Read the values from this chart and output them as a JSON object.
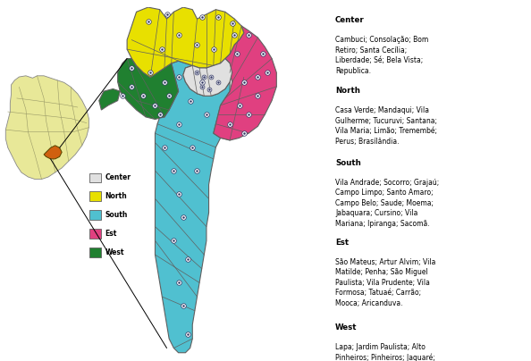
{
  "background_color": "#ffffff",
  "colors": {
    "center": "#e0e0e0",
    "north": "#e8e000",
    "south": "#50c0d0",
    "east": "#e04080",
    "west": "#208030",
    "border": "#606060",
    "brazil_fill": "#e8e898",
    "brazil_highlight": "#d06010",
    "dot_color": "#2a3060"
  },
  "region_texts": {
    "Center": {
      "bold": "Center",
      "text": "Cambuci; Consolação; Bom\nRetiro; Santa Cecília;\nLiberdade; Sé; Bela Vista;\nRepublica."
    },
    "North": {
      "bold": "North",
      "text": "Casa Verde; Mandaqui; Vila\nGulherme; Tucuruvi; Santana;\nVila Maria; Limão; Tremembé;\nPerus; Brasílândia."
    },
    "South": {
      "bold": "South",
      "text": "Vila Andrade; Socorro; Grajaú;\nCampo Limpo; Santo Amaro;\nCampo Belo; Saude; Moema;\nJabaquara; Cursino; Vila\nMariana; Ipiranga; Sacomã."
    },
    "Est": {
      "bold": "Est",
      "text": "São Mateus; Artur Alvim; Vila\nMatilde; Penha; São Miguel\nPaulista; Vila Prudente; Vila\nFormosa; Tatuaé; Carrão;\nMooca; Aricanduva."
    },
    "West": {
      "bold": "West",
      "text": "Lapa; Jardim Paulista; Alto\nPinheiros; Pinheiros; Jaguaré;\nItaim Bibi; Morumbi; Vila Sonia;\nButanã; Vila Leopoldina;\nPerdizes; Barra Funda."
    }
  },
  "figsize": [
    5.94,
    4.04
  ],
  "dpi": 100
}
